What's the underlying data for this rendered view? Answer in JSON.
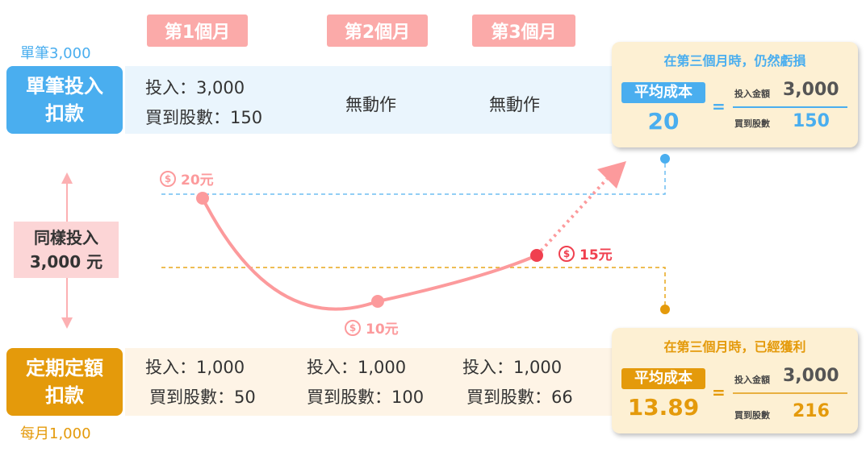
{
  "months": [
    "第1個月",
    "第2個月",
    "第3個月"
  ],
  "lump": {
    "top_note": "單筆3,000",
    "label_line1": "單筆投入",
    "label_line2": "扣款",
    "invest": "投入：3,000",
    "shares": "買到股數：150",
    "m2": "無動作",
    "m3": "無動作"
  },
  "dca": {
    "bottom_note": "每月1,000",
    "label_line1": "定期定額",
    "label_line2": "扣款",
    "invest": [
      "投入：1,000",
      "投入：1,000",
      "投入：1,000"
    ],
    "shares": [
      "買到股數：50",
      "買到股數：100",
      "買到股數：66"
    ]
  },
  "same": {
    "line1": "同樣投入",
    "line2": "3,000 元"
  },
  "prices": [
    "20元",
    "10元",
    "15元"
  ],
  "coin_symbol": "$",
  "card_top": {
    "title": "在第三個月時，仍然虧損",
    "tag": "平均成本",
    "avg": "20",
    "eq": "=",
    "amt_label": "投入金額",
    "amt": "3,000",
    "shares_label": "買到股數",
    "shares": "150"
  },
  "card_bottom": {
    "title": "在第三個月時，已經獲利",
    "tag": "平均成本",
    "avg": "13.89",
    "eq": "=",
    "amt_label": "投入金額",
    "amt": "3,000",
    "shares_label": "買到股數",
    "shares": "216"
  },
  "colors": {
    "blue": "#4aaeef",
    "orange": "#e49a0b",
    "pink": "#fc9a9c",
    "red": "#f0404f"
  }
}
